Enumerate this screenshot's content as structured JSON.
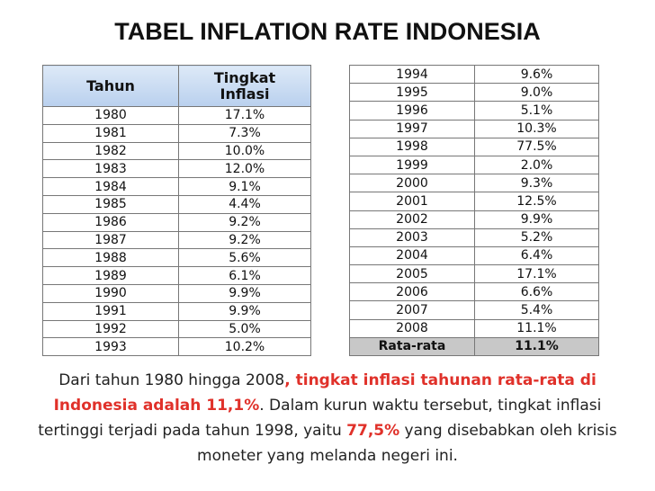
{
  "title": "TABEL INFLATION RATE INDONESIA",
  "left_table": {
    "header": [
      [
        "Tahun"
      ],
      [
        "Tingkat",
        "Inflasi"
      ]
    ],
    "rows": [
      [
        "1980",
        "17.1%"
      ],
      [
        "1981",
        "7.3%"
      ],
      [
        "1982",
        "10.0%"
      ],
      [
        "1983",
        "12.0%"
      ],
      [
        "1984",
        "9.1%"
      ],
      [
        "1985",
        "4.4%"
      ],
      [
        "1986",
        "9.2%"
      ],
      [
        "1987",
        "9.2%"
      ],
      [
        "1988",
        "5.6%"
      ],
      [
        "1989",
        "6.1%"
      ],
      [
        "1990",
        "9.9%"
      ],
      [
        "1991",
        "9.9%"
      ],
      [
        "1992",
        "5.0%"
      ],
      [
        "1993",
        "10.2%"
      ]
    ]
  },
  "right_table": {
    "rows": [
      [
        "1994",
        "9.6%"
      ],
      [
        "1995",
        "9.0%"
      ],
      [
        "1996",
        "5.1%"
      ],
      [
        "1997",
        "10.3%"
      ],
      [
        "1998",
        "77.5%"
      ],
      [
        "1999",
        "2.0%"
      ],
      [
        "2000",
        "9.3%"
      ],
      [
        "2001",
        "12.5%"
      ],
      [
        "2002",
        "9.9%"
      ],
      [
        "2003",
        "5.2%"
      ],
      [
        "2004",
        "6.4%"
      ],
      [
        "2005",
        "17.1%"
      ],
      [
        "2006",
        "6.6%"
      ],
      [
        "2007",
        "5.4%"
      ],
      [
        "2008",
        "11.1%"
      ]
    ],
    "footer": [
      "Rata-rata",
      "11.1%"
    ]
  },
  "paragraph": [
    {
      "text": "Dari tahun 1980 hingga 2008",
      "emphasis": false
    },
    {
      "text": ", tingkat inflasi tahunan rata-rata di Indonesia adalah 11,1%",
      "emphasis": true
    },
    {
      "text": ". Dalam kurun waktu tersebut, tingkat inflasi tertinggi terjadi pada tahun 1998, yaitu ",
      "emphasis": false
    },
    {
      "text": "77,5%",
      "emphasis": true
    },
    {
      "text": " yang disebabkan oleh krisis moneter yang melanda negeri ini.",
      "emphasis": false
    }
  ]
}
